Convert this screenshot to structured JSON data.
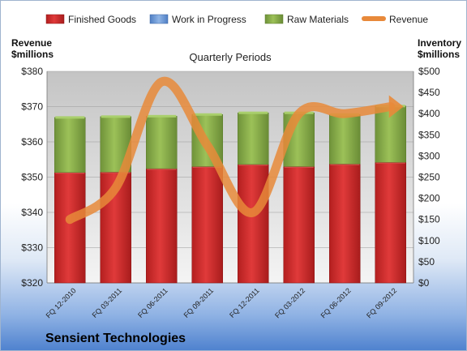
{
  "chart_data": {
    "type": "bar",
    "title": "Quarterly Periods",
    "company": "Sensient Technologies",
    "categories": [
      "FQ 12-2010",
      "FQ 03-2011",
      "FQ 06-2011",
      "FQ 09-2011",
      "FQ 12-2011",
      "FQ 03-2012",
      "FQ 06-2012",
      "FQ 09-2012"
    ],
    "left_axis": {
      "label_line1": "Revenue",
      "label_line2": "$millions",
      "ylim": [
        320,
        380
      ],
      "ticks": [
        "$320",
        "$330",
        "$340",
        "$350",
        "$360",
        "$370",
        "$380"
      ]
    },
    "right_axis": {
      "label_line1": "Inventory",
      "label_line2": "$millions",
      "ylim": [
        0,
        500
      ],
      "ticks": [
        "$0",
        "$50",
        "$100",
        "$150",
        "$200",
        "$250",
        "$300",
        "$350",
        "$400",
        "$450",
        "$500"
      ]
    },
    "series": [
      {
        "name": "Finished Goods",
        "kind": "bar",
        "axis": "right",
        "color": "#cc2b2b",
        "values": [
          261,
          262,
          270,
          275,
          280,
          275,
          281,
          285
        ]
      },
      {
        "name": "Work in Progress",
        "kind": "bar",
        "axis": "right",
        "color": "#6f9bd8",
        "values": [
          0,
          0,
          0,
          0,
          0,
          0,
          0,
          0
        ]
      },
      {
        "name": "Raw Materials",
        "kind": "bar",
        "axis": "right",
        "color": "#8cb04a",
        "values": [
          130,
          131,
          124,
          123,
          122,
          127,
          117,
          133
        ]
      },
      {
        "name": "Revenue",
        "kind": "line",
        "axis": "left",
        "color": "#e8893a",
        "values": [
          338,
          347,
          377,
          359,
          340,
          368,
          368,
          370
        ]
      }
    ],
    "legend": "top",
    "grid": true
  }
}
